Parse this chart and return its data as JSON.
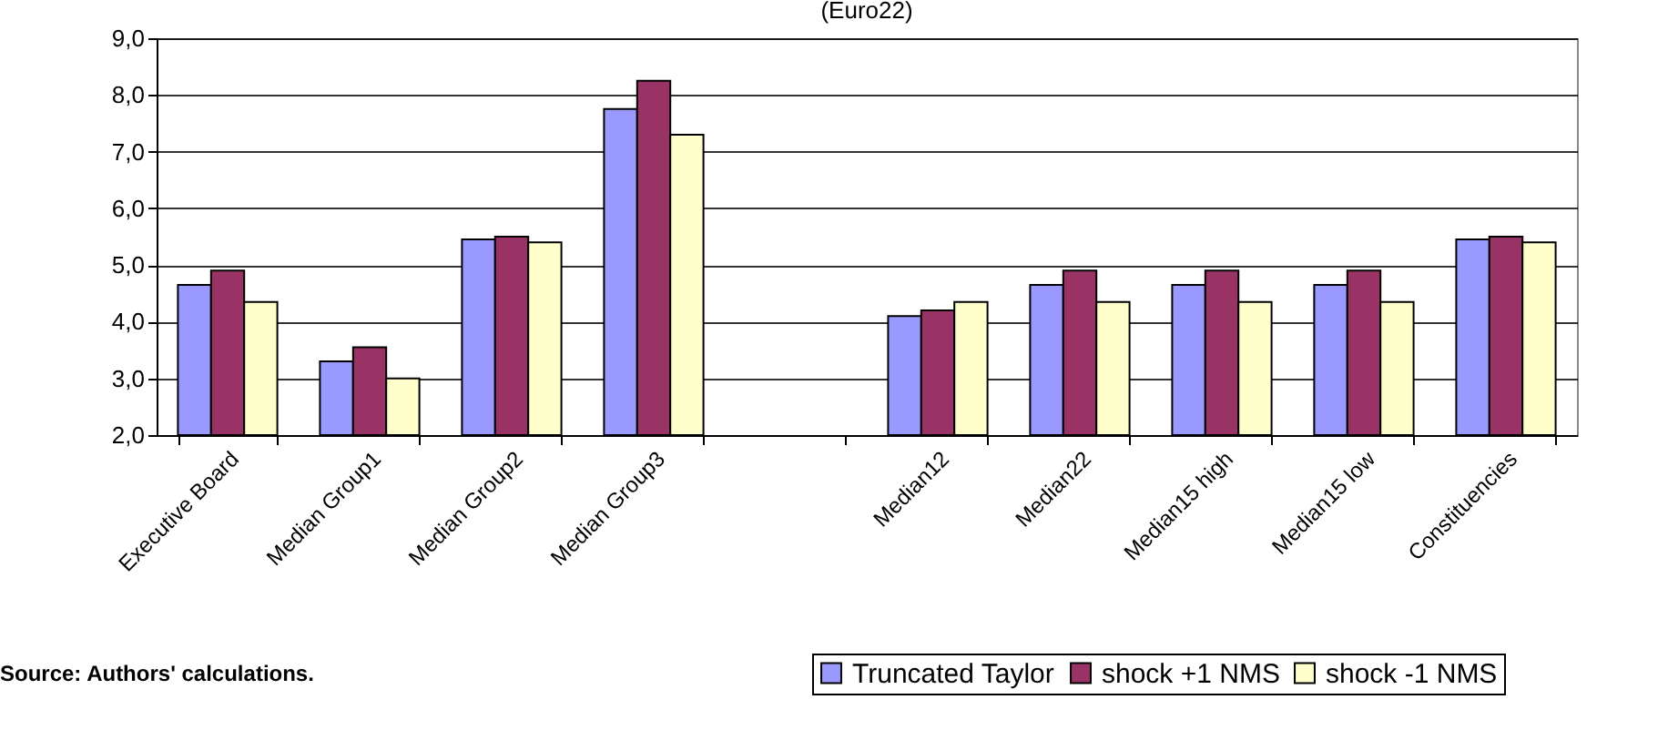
{
  "chart_data": {
    "type": "bar",
    "title": "(Euro22)",
    "categories": [
      "Executive Board",
      "Median Group1",
      "Median Group2",
      "Median Group3",
      null,
      "Median12",
      "Median22",
      "Median15 high",
      "Median15 low",
      "Constituencies"
    ],
    "series": [
      {
        "name": "Truncated Taylor",
        "color": "#9999ff",
        "values": [
          4.65,
          3.3,
          5.45,
          7.75,
          null,
          4.1,
          4.65,
          4.65,
          4.65,
          5.45
        ]
      },
      {
        "name": "shock +1 NMS",
        "color": "#993366",
        "values": [
          4.9,
          3.55,
          5.5,
          8.25,
          null,
          4.2,
          4.9,
          4.9,
          4.9,
          5.5
        ]
      },
      {
        "name": "shock -1 NMS",
        "color": "#ffffcc",
        "values": [
          4.35,
          3.0,
          5.4,
          7.3,
          null,
          4.35,
          4.35,
          4.35,
          4.35,
          5.4
        ]
      }
    ],
    "ylim": [
      2,
      9
    ],
    "yticks": [
      {
        "value": 2,
        "label": "2,0"
      },
      {
        "value": 3,
        "label": "3,0"
      },
      {
        "value": 4,
        "label": "4,0"
      },
      {
        "value": 5,
        "label": "5,0"
      },
      {
        "value": 6,
        "label": "6,0"
      },
      {
        "value": 7,
        "label": "7,0"
      },
      {
        "value": 8,
        "label": "8,0"
      },
      {
        "value": 9,
        "label": "9,0"
      }
    ],
    "grid": "y",
    "legend": "bottom right",
    "annotations": [
      "Source: Authors' calculations."
    ]
  }
}
